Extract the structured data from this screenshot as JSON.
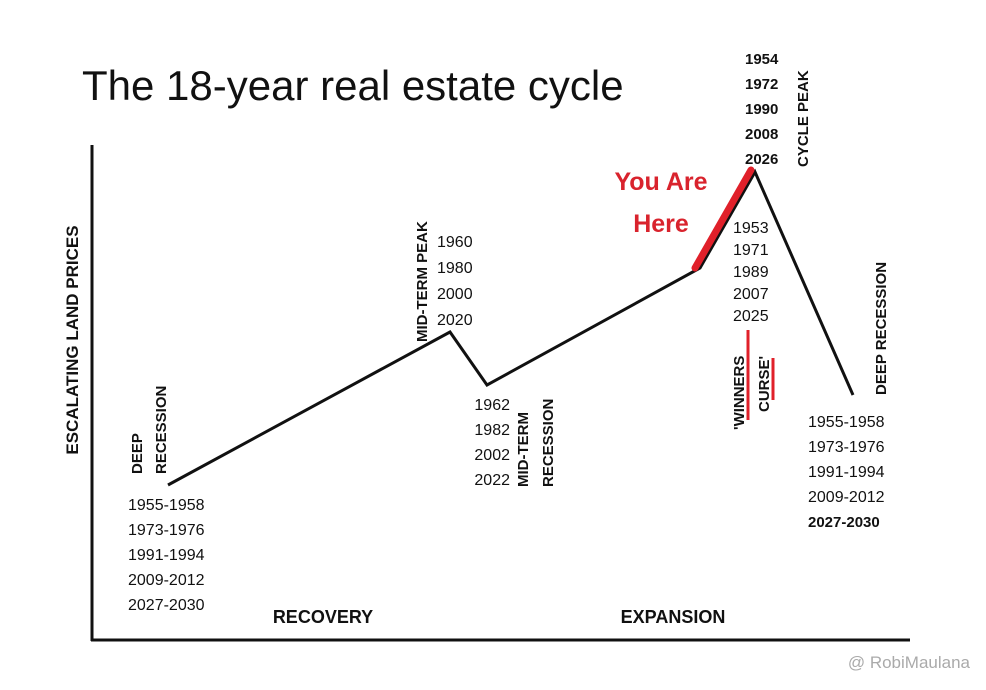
{
  "title": "The 18-year real estate cycle",
  "y_axis_label": "ESCALATING LAND PRICES",
  "phases": [
    "RECOVERY",
    "EXPANSION"
  ],
  "stages": [
    {
      "label": [
        "DEEP",
        "RECESSION"
      ],
      "years": [
        "1955-1958",
        "1973-1976",
        "1991-1994",
        "2009-2012",
        "2027-2030"
      ]
    },
    {
      "label": [
        "MID-TERM PEAK"
      ],
      "years": [
        "1960",
        "1980",
        "2000",
        "2020"
      ]
    },
    {
      "label": [
        "MID-TERM",
        "RECESSION"
      ],
      "years": [
        "1962",
        "1982",
        "2002",
        "2022"
      ]
    },
    {
      "label": [],
      "years": [
        "1953",
        "1971",
        "1989",
        "2007",
        "2025"
      ]
    },
    {
      "label": [
        "CYCLE PEAK"
      ],
      "years": [
        "1954",
        "1972",
        "1990",
        "2008",
        "2026"
      ]
    },
    {
      "label": [
        "DEEP RECESSION"
      ],
      "years": [
        "1955-1958",
        "1973-1976",
        "1991-1994",
        "2009-2012",
        "2027-2030"
      ]
    }
  ],
  "you_are_here": [
    "You Are",
    "Here"
  ],
  "winners_curse": [
    "'WINNERS",
    "CURSE'"
  ],
  "watermark": "@ RobiMaulana"
}
